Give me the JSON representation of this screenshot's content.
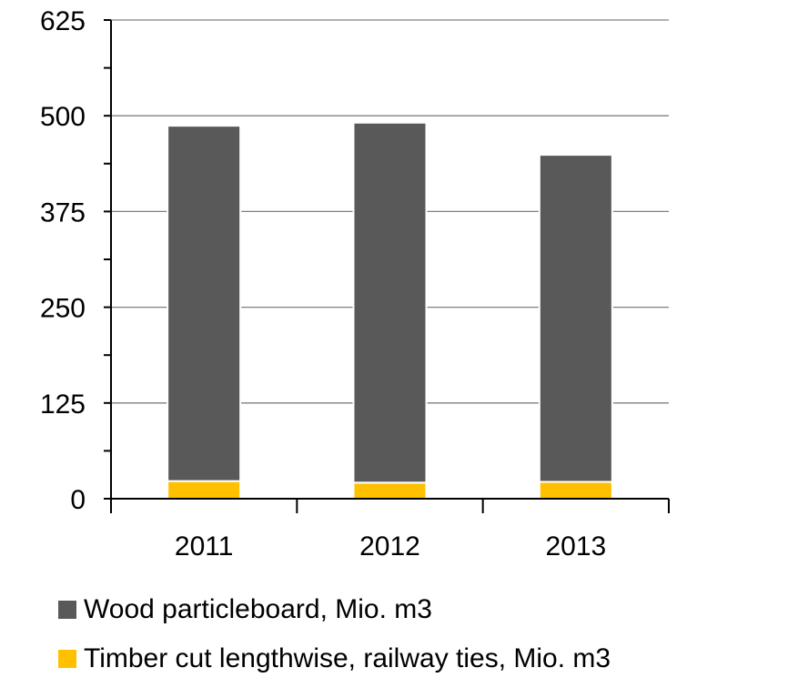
{
  "chart_data": {
    "type": "bar",
    "stacked": true,
    "categories": [
      "2011",
      "2012",
      "2013"
    ],
    "series": [
      {
        "name": "Timber cut lengthwise, railway ties, Mio. m3",
        "values": [
          23,
          21,
          22
        ],
        "color": "#FFC000"
      },
      {
        "name": "Wood particleboard, Mio. m3",
        "values": [
          464,
          470,
          427
        ],
        "color": "#595959"
      }
    ],
    "ylim": [
      0,
      625
    ],
    "yticks": [
      0,
      125,
      250,
      375,
      500,
      625
    ],
    "grid": true,
    "legend_position": "bottom",
    "title": "",
    "xlabel": "",
    "ylabel": ""
  },
  "legend": {
    "items": [
      {
        "label": "Wood particleboard, Mio. m3",
        "color": "#595959"
      },
      {
        "label": "Timber cut lengthwise, railway ties, Mio. m3",
        "color": "#FFC000"
      }
    ]
  }
}
